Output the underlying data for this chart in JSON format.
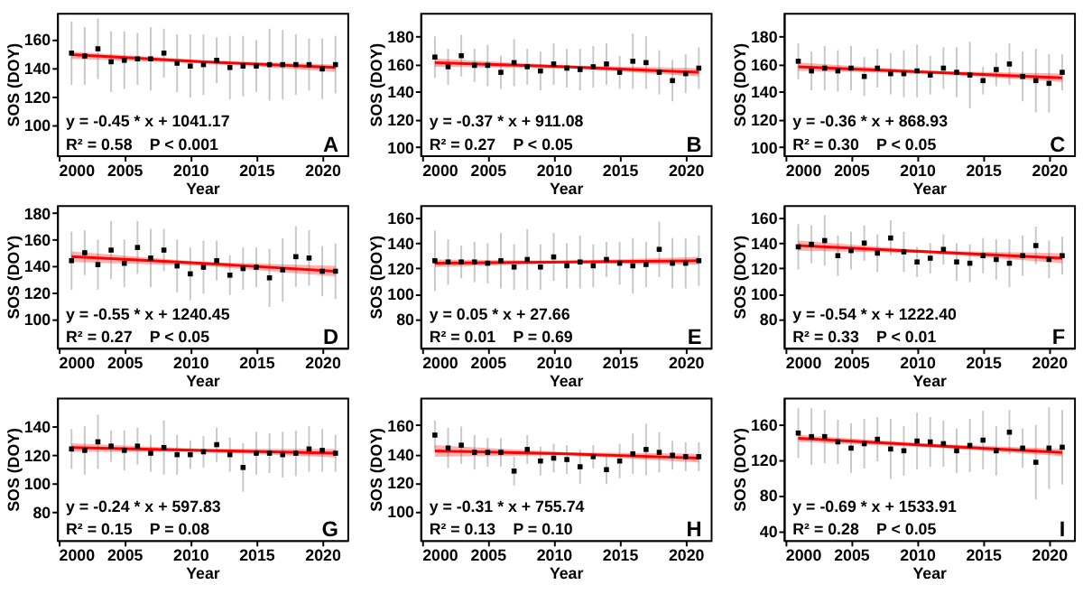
{
  "chart_data": [
    {
      "type": "scatter",
      "xlabel": "Year",
      "ylabel": "SOS (DOY)",
      "x": [
        2001,
        2002,
        2003,
        2004,
        2005,
        2006,
        2007,
        2008,
        2009,
        2010,
        2011,
        2012,
        2013,
        2014,
        2015,
        2016,
        2017,
        2018,
        2019,
        2020,
        2021
      ],
      "xlim": [
        1999.9,
        2021.9
      ],
      "xticks": [
        2000,
        2005,
        2010,
        2015,
        2020
      ],
      "ylim": [
        79,
        178
      ],
      "yticks": [
        100,
        120,
        140,
        160
      ],
      "series": [
        {
          "color": "#000000",
          "marker": "square",
          "values": [
            150,
            148,
            153,
            144,
            145,
            146,
            146,
            150,
            143,
            141,
            142,
            145,
            140,
            141,
            141,
            142,
            142,
            142,
            142,
            139,
            142
          ],
          "errors": [
            22,
            20,
            21,
            21,
            20,
            18,
            22,
            17,
            20,
            22,
            21,
            16,
            22,
            21,
            18,
            25,
            24,
            21,
            18,
            21,
            20
          ]
        },
        {
          "type": "line",
          "marker": "none",
          "color": "#ff0000",
          "x": [
            2001,
            2011,
            2021
          ],
          "values": [
            149,
            144,
            140
          ],
          "lower": [
            146,
            143,
            137
          ],
          "upper": [
            151,
            145,
            142
          ]
        }
      ],
      "annotations": [
        "y = -0.45 * x + 1041.17",
        "R² = 0.58",
        "P < 0.001",
        "A"
      ]
    },
    {
      "type": "scatter",
      "xlabel": "Year",
      "ylabel": "SOS (DOY)",
      "x": [
        2001,
        2002,
        2003,
        2004,
        2005,
        2006,
        2007,
        2008,
        2009,
        2010,
        2011,
        2012,
        2013,
        2014,
        2015,
        2016,
        2017,
        2018,
        2019,
        2020,
        2021
      ],
      "xlim": [
        1999.9,
        2021.9
      ],
      "xticks": [
        2000,
        2005,
        2010,
        2015,
        2020
      ],
      "ylim": [
        94,
        197
      ],
      "yticks": [
        100,
        120,
        140,
        160,
        180
      ],
      "series": [
        {
          "color": "#000000",
          "marker": "square",
          "values": [
            165,
            158,
            166,
            159,
            159,
            154,
            161,
            158,
            155,
            160,
            157,
            156,
            158,
            160,
            154,
            162,
            161,
            154,
            148,
            153,
            157
          ],
          "errors": [
            15,
            13,
            15,
            12,
            15,
            12,
            17,
            13,
            14,
            15,
            14,
            15,
            15,
            15,
            12,
            20,
            19,
            16,
            15,
            14,
            15
          ]
        },
        {
          "type": "line",
          "marker": "none",
          "color": "#ff0000",
          "x": [
            2001,
            2011,
            2021
          ],
          "values": [
            161,
            158,
            154
          ],
          "lower": [
            158,
            157,
            151
          ],
          "upper": [
            164,
            159,
            157
          ]
        }
      ],
      "annotations": [
        "y = -0.37 * x + 911.08",
        "R² = 0.27",
        "P < 0.05",
        "B"
      ]
    },
    {
      "type": "scatter",
      "xlabel": "Year",
      "ylabel": "SOS (DOY)",
      "x": [
        2001,
        2002,
        2003,
        2004,
        2005,
        2006,
        2007,
        2008,
        2009,
        2010,
        2011,
        2012,
        2013,
        2014,
        2015,
        2016,
        2017,
        2018,
        2019,
        2020,
        2021
      ],
      "xlim": [
        1999.9,
        2021.9
      ],
      "xticks": [
        2000,
        2005,
        2010,
        2015,
        2020
      ],
      "ylim": [
        94,
        197
      ],
      "yticks": [
        100,
        120,
        140,
        160,
        180
      ],
      "series": [
        {
          "color": "#000000",
          "marker": "square",
          "values": [
            162,
            155,
            157,
            155,
            157,
            151,
            157,
            153,
            153,
            155,
            152,
            157,
            154,
            152,
            148,
            156,
            160,
            151,
            148,
            146,
            154
          ],
          "errors": [
            13,
            14,
            16,
            15,
            16,
            14,
            14,
            15,
            17,
            19,
            14,
            15,
            18,
            24,
            10,
            12,
            15,
            18,
            23,
            21,
            13
          ]
        },
        {
          "type": "line",
          "marker": "none",
          "color": "#ff0000",
          "x": [
            2001,
            2011,
            2021
          ],
          "values": [
            158,
            154,
            150
          ],
          "lower": [
            155,
            153,
            147
          ],
          "upper": [
            161,
            155,
            153
          ]
        }
      ],
      "annotations": [
        "y = -0.36 * x + 868.93",
        "R² = 0.30",
        "P < 0.05",
        "C"
      ]
    },
    {
      "type": "scatter",
      "xlabel": "Year",
      "ylabel": "SOS (DOY)",
      "x": [
        2001,
        2002,
        2003,
        2004,
        2005,
        2006,
        2007,
        2008,
        2009,
        2010,
        2011,
        2012,
        2013,
        2014,
        2015,
        2016,
        2017,
        2018,
        2019,
        2020,
        2021
      ],
      "xlim": [
        1999.9,
        2021.9
      ],
      "xticks": [
        2000,
        2005,
        2010,
        2015,
        2020
      ],
      "ylim": [
        78,
        186
      ],
      "yticks": [
        100,
        120,
        140,
        160,
        180
      ],
      "series": [
        {
          "color": "#000000",
          "marker": "square",
          "values": [
            144,
            150,
            141,
            152,
            142,
            154,
            146,
            152,
            140,
            134,
            139,
            144,
            133,
            138,
            139,
            131,
            137,
            147,
            146,
            136,
            136
          ],
          "errors": [
            22,
            17,
            19,
            22,
            18,
            20,
            22,
            16,
            20,
            20,
            20,
            15,
            15,
            16,
            15,
            22,
            24,
            23,
            21,
            19,
            21
          ]
        },
        {
          "type": "line",
          "marker": "none",
          "color": "#ff0000",
          "x": [
            2001,
            2011,
            2021
          ],
          "values": [
            147,
            142,
            136
          ],
          "lower": [
            143,
            140,
            132
          ],
          "upper": [
            151,
            143,
            140
          ]
        }
      ],
      "annotations": [
        "y = -0.55 * x + 1240.45",
        "R² = 0.27",
        "P < 0.05",
        "D"
      ]
    },
    {
      "type": "scatter",
      "xlabel": "Year",
      "ylabel": "SOS (DOY)",
      "x": [
        2001,
        2002,
        2003,
        2004,
        2005,
        2006,
        2007,
        2008,
        2009,
        2010,
        2011,
        2012,
        2013,
        2014,
        2015,
        2016,
        2017,
        2018,
        2019,
        2020,
        2021
      ],
      "xlim": [
        1999.9,
        2021.9
      ],
      "xticks": [
        2000,
        2005,
        2010,
        2015,
        2020
      ],
      "ylim": [
        57,
        170
      ],
      "yticks": [
        80,
        100,
        120,
        140,
        160
      ],
      "series": [
        {
          "color": "#000000",
          "marker": "square",
          "values": [
            126,
            125,
            125,
            125,
            124,
            126,
            121,
            127,
            121,
            129,
            122,
            125,
            122,
            127,
            124,
            122,
            123,
            135,
            124,
            124,
            126
          ],
          "errors": [
            24,
            18,
            13,
            16,
            16,
            22,
            18,
            24,
            18,
            19,
            18,
            21,
            17,
            14,
            17,
            22,
            18,
            22,
            20,
            20,
            20
          ]
        },
        {
          "type": "line",
          "marker": "none",
          "color": "#ff0000",
          "x": [
            2001,
            2011,
            2021
          ],
          "values": [
            124,
            125,
            126
          ],
          "lower": [
            121,
            124,
            123
          ],
          "upper": [
            127,
            126,
            129
          ]
        }
      ],
      "annotations": [
        "y = 0.05 * x + 27.66",
        "R² = 0.01",
        "P = 0.69",
        "E"
      ]
    },
    {
      "type": "scatter",
      "xlabel": "Year",
      "ylabel": "SOS (DOY)",
      "x": [
        2001,
        2002,
        2003,
        2004,
        2005,
        2006,
        2007,
        2008,
        2009,
        2010,
        2011,
        2012,
        2013,
        2014,
        2015,
        2016,
        2017,
        2018,
        2019,
        2020,
        2021
      ],
      "xlim": [
        1999.9,
        2021.9
      ],
      "xticks": [
        2000,
        2005,
        2010,
        2015,
        2020
      ],
      "ylim": [
        57,
        170
      ],
      "yticks": [
        80,
        100,
        120,
        140,
        160
      ],
      "series": [
        {
          "color": "#000000",
          "marker": "square",
          "values": [
            137,
            139,
            142,
            130,
            134,
            140,
            132,
            144,
            133,
            125,
            128,
            135,
            125,
            124,
            130,
            127,
            124,
            130,
            138,
            127,
            130
          ],
          "errors": [
            18,
            15,
            20,
            16,
            15,
            14,
            15,
            14,
            16,
            12,
            12,
            12,
            15,
            15,
            14,
            16,
            19,
            16,
            15,
            15,
            15
          ]
        },
        {
          "type": "line",
          "marker": "none",
          "color": "#ff0000",
          "x": [
            2001,
            2011,
            2021
          ],
          "values": [
            138,
            133,
            128
          ],
          "lower": [
            134,
            132,
            124
          ],
          "upper": [
            142,
            134,
            132
          ]
        }
      ],
      "annotations": [
        "y = -0.54 * x + 1222.40",
        "R² = 0.33",
        "P < 0.01",
        "F"
      ]
    },
    {
      "type": "scatter",
      "xlabel": "Year",
      "ylabel": "SOS (DOY)",
      "x": [
        2001,
        2002,
        2003,
        2004,
        2005,
        2006,
        2007,
        2008,
        2009,
        2010,
        2011,
        2012,
        2013,
        2014,
        2015,
        2016,
        2017,
        2018,
        2019,
        2020,
        2021
      ],
      "xlim": [
        1999.9,
        2021.9
      ],
      "xticks": [
        2000,
        2005,
        2010,
        2015,
        2020
      ],
      "ylim": [
        60,
        160
      ],
      "yticks": [
        80,
        100,
        120,
        140
      ],
      "series": [
        {
          "color": "#000000",
          "marker": "square",
          "values": [
            124,
            123,
            129,
            126,
            123,
            126,
            121,
            125,
            120,
            120,
            122,
            127,
            120,
            111,
            121,
            121,
            120,
            121,
            124,
            123,
            121
          ],
          "errors": [
            14,
            17,
            19,
            11,
            14,
            13,
            13,
            19,
            14,
            10,
            11,
            12,
            12,
            17,
            15,
            14,
            16,
            16,
            16,
            15,
            13
          ]
        },
        {
          "type": "line",
          "marker": "none",
          "color": "#ff0000",
          "x": [
            2001,
            2011,
            2021
          ],
          "values": [
            125,
            123,
            121
          ],
          "lower": [
            122,
            122,
            118
          ],
          "upper": [
            128,
            124,
            124
          ]
        }
      ],
      "annotations": [
        "y = -0.24 * x + 597.83",
        "R² = 0.15",
        "P = 0.08",
        "G"
      ]
    },
    {
      "type": "scatter",
      "xlabel": "Year",
      "ylabel": "SOS (DOY)",
      "x": [
        2001,
        2002,
        2003,
        2004,
        2005,
        2006,
        2007,
        2008,
        2009,
        2010,
        2011,
        2012,
        2013,
        2014,
        2015,
        2016,
        2017,
        2018,
        2019,
        2020,
        2021
      ],
      "xlim": [
        1999.9,
        2021.9
      ],
      "xticks": [
        2000,
        2005,
        2010,
        2015,
        2020
      ],
      "ylim": [
        80,
        179
      ],
      "yticks": [
        100,
        120,
        140,
        160
      ],
      "series": [
        {
          "color": "#000000",
          "marker": "square",
          "values": [
            153,
            144,
            146,
            141,
            141,
            141,
            128,
            143,
            135,
            137,
            136,
            131,
            138,
            129,
            135,
            140,
            143,
            141,
            139,
            138,
            138
          ],
          "errors": [
            10,
            14,
            13,
            12,
            10,
            10,
            10,
            10,
            10,
            10,
            10,
            12,
            8,
            10,
            12,
            14,
            18,
            14,
            10,
            10,
            10
          ]
        },
        {
          "type": "line",
          "marker": "none",
          "color": "#ff0000",
          "x": [
            2001,
            2011,
            2021
          ],
          "values": [
            142,
            140,
            137
          ],
          "lower": [
            138,
            139,
            134
          ],
          "upper": [
            146,
            141,
            140
          ]
        }
      ],
      "annotations": [
        "y = -0.31 * x + 755.74",
        "R² = 0.13",
        "P = 0.10",
        "H"
      ]
    },
    {
      "type": "scatter",
      "xlabel": "Year",
      "ylabel": "SOS (DOY)",
      "x": [
        2001,
        2002,
        2003,
        2004,
        2005,
        2006,
        2007,
        2008,
        2009,
        2010,
        2011,
        2012,
        2013,
        2014,
        2015,
        2016,
        2017,
        2018,
        2019,
        2020,
        2021
      ],
      "xlim": [
        1999.9,
        2021.9
      ],
      "xticks": [
        2000,
        2005,
        2010,
        2015,
        2020
      ],
      "ylim": [
        29,
        190
      ],
      "yticks": [
        40,
        80,
        120,
        160
      ],
      "series": [
        {
          "color": "#000000",
          "marker": "square",
          "values": [
            150,
            146,
            146,
            140,
            133,
            138,
            143,
            132,
            130,
            141,
            140,
            138,
            130,
            136,
            142,
            130,
            151,
            133,
            117,
            133,
            134
          ],
          "errors": [
            28,
            32,
            30,
            25,
            28,
            28,
            25,
            34,
            28,
            32,
            28,
            26,
            25,
            30,
            33,
            28,
            25,
            22,
            42,
            46,
            42
          ]
        },
        {
          "type": "line",
          "marker": "none",
          "color": "#ff0000",
          "x": [
            2001,
            2011,
            2021
          ],
          "values": [
            144,
            136,
            128
          ],
          "lower": [
            140,
            134,
            124
          ],
          "upper": [
            148,
            138,
            132
          ]
        }
      ],
      "annotations": [
        "y = -0.69 * x + 1533.91",
        "R² = 0.28",
        "P < 0.05",
        "I"
      ]
    }
  ]
}
